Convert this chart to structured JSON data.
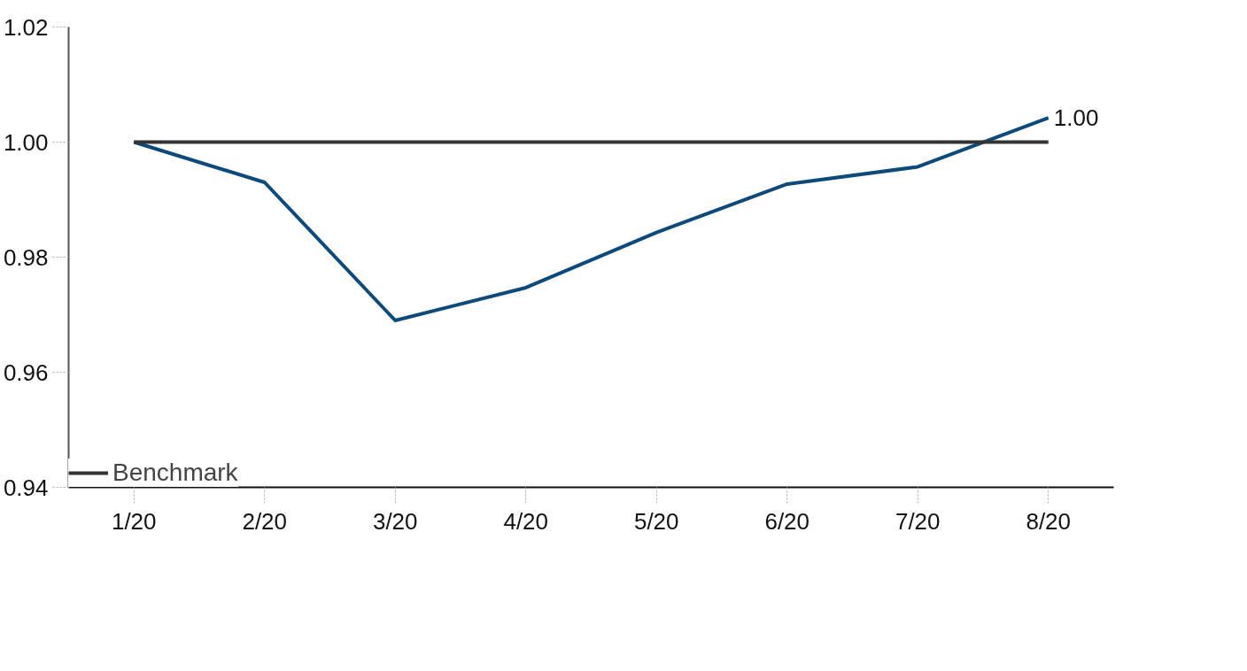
{
  "chart_data": {
    "type": "line",
    "categories": [
      "1/20",
      "2/20",
      "3/20",
      "4/20",
      "5/20",
      "6/20",
      "7/20",
      "8/20"
    ],
    "series": [
      {
        "color": "#0d4a7c",
        "values": [
          1.0,
          0.993,
          0.969,
          0.9747,
          0.9843,
          0.9927,
          0.9957,
          1.0042
        ],
        "value_labels": [
          null,
          null,
          null,
          null,
          null,
          null,
          null,
          "1.00"
        ]
      },
      {
        "name": "Benchmark",
        "color": "#333333",
        "values": [
          1.0,
          1.0,
          1.0,
          1.0,
          1.0,
          1.0,
          1.0,
          1.0
        ]
      }
    ],
    "ylim": [
      0.94,
      1.02
    ],
    "yticks": [
      0.94,
      0.96,
      0.98,
      {
        "value": 1.0,
        "label": "1.00"
      },
      1.02
    ],
    "grid": false,
    "legend": "bottom left",
    "marker": "none",
    "line_style": "solid"
  }
}
